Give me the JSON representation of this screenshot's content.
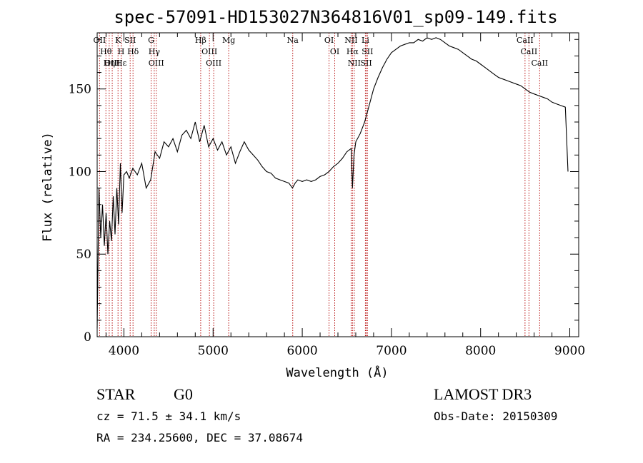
{
  "chart_data": {
    "type": "line",
    "title": "spec-57091-HD153027N364816V01_sp09-149.fits",
    "xlabel": "Wavelength (Å)",
    "ylabel": "Flux (relative)",
    "xlim": [
      3700,
      9100
    ],
    "ylim": [
      0,
      184
    ],
    "x_ticks": [
      4000,
      5000,
      6000,
      7000,
      8000,
      9000
    ],
    "y_ticks": [
      0,
      50,
      100,
      150
    ],
    "grid": false,
    "series": [
      {
        "x": [
          3700,
          3720,
          3740,
          3760,
          3780,
          3800,
          3820,
          3840,
          3860,
          3880,
          3900,
          3920,
          3940,
          3960,
          3980,
          4000,
          4030,
          4060,
          4100,
          4150,
          4200,
          4250,
          4300,
          4350,
          4400,
          4450,
          4500,
          4550,
          4600,
          4650,
          4700,
          4750,
          4800,
          4850,
          4900,
          4950,
          5000,
          5050,
          5100,
          5150,
          5200,
          5250,
          5300,
          5350,
          5400,
          5450,
          5500,
          5550,
          5600,
          5650,
          5700,
          5750,
          5800,
          5850,
          5890,
          5920,
          5950,
          6000,
          6050,
          6100,
          6150,
          6200,
          6250,
          6300,
          6350,
          6400,
          6450,
          6500,
          6550,
          6563,
          6580,
          6600,
          6650,
          6700,
          6750,
          6800,
          6850,
          6900,
          6950,
          7000,
          7050,
          7100,
          7150,
          7200,
          7250,
          7300,
          7350,
          7400,
          7450,
          7500,
          7550,
          7600,
          7650,
          7700,
          7750,
          7800,
          7850,
          7900,
          7950,
          8000,
          8050,
          8100,
          8150,
          8200,
          8250,
          8300,
          8350,
          8400,
          8450,
          8500,
          8550,
          8600,
          8650,
          8700,
          8750,
          8800,
          8850,
          8900,
          8950,
          8980
        ],
        "y": [
          5,
          90,
          60,
          80,
          55,
          75,
          50,
          70,
          58,
          85,
          62,
          90,
          68,
          105,
          75,
          98,
          100,
          96,
          102,
          98,
          105,
          90,
          95,
          112,
          108,
          118,
          115,
          120,
          112,
          122,
          125,
          120,
          130,
          118,
          128,
          115,
          120,
          113,
          118,
          110,
          115,
          105,
          112,
          118,
          113,
          110,
          107,
          103,
          100,
          99,
          96,
          95,
          94,
          93,
          90,
          93,
          95,
          94,
          95,
          94,
          95,
          97,
          98,
          100,
          103,
          105,
          108,
          112,
          114,
          90,
          110,
          118,
          123,
          130,
          140,
          150,
          157,
          163,
          168,
          172,
          174,
          176,
          177,
          178,
          178,
          180,
          179,
          181,
          180,
          181,
          180,
          178,
          176,
          175,
          174,
          172,
          170,
          168,
          167,
          165,
          163,
          161,
          159,
          157,
          156,
          155,
          154,
          153,
          152,
          150,
          148,
          147,
          146,
          145,
          144,
          142,
          141,
          140,
          139,
          100
        ]
      }
    ],
    "line_markers": [
      {
        "label": "Hδ",
        "x": 4102
      },
      {
        "label": "K",
        "x": 3934
      },
      {
        "label": "Hε",
        "x": 3970
      },
      {
        "label": "H",
        "x": 3969
      },
      {
        "label": "Hη",
        "x": 3835
      },
      {
        "label": "Hθ",
        "x": 3798
      },
      {
        "label": "OII",
        "x": 3727
      },
      {
        "label": "OIII",
        "x": 3869
      },
      {
        "label": "SII",
        "x": 4070
      },
      {
        "label": "OIII",
        "x": 4363
      },
      {
        "label": "Hγ",
        "x": 4340
      },
      {
        "label": "G",
        "x": 4305
      },
      {
        "label": "Hβ",
        "x": 4861
      },
      {
        "label": "OIII",
        "x": 4959
      },
      {
        "label": "OIII",
        "x": 5007
      },
      {
        "label": "Mg",
        "x": 5175
      },
      {
        "label": "Na",
        "x": 5893
      },
      {
        "label": "OI",
        "x": 6300
      },
      {
        "label": "OI",
        "x": 6364
      },
      {
        "label": "Hα",
        "x": 6563
      },
      {
        "label": "NII",
        "x": 6548
      },
      {
        "label": "NII",
        "x": 6583
      },
      {
        "label": "SII",
        "x": 6717
      },
      {
        "label": "Li",
        "x": 6708
      },
      {
        "label": "SII",
        "x": 6731
      },
      {
        "label": "CaII",
        "x": 8498
      },
      {
        "label": "CaII",
        "x": 8542
      },
      {
        "label": "CaII",
        "x": 8662
      }
    ]
  },
  "info": {
    "object_class": "STAR",
    "subclass": "G0",
    "survey": "LAMOST DR3",
    "redshift": "cz = 71.5 ± 34.1 km/s",
    "obs_date": "Obs-Date: 20150309",
    "coords": "RA = 234.25600, DEC =  37.08674"
  },
  "colors": {
    "spectrum": "#000000",
    "line_marker": "#b30000",
    "axis": "#000000"
  }
}
